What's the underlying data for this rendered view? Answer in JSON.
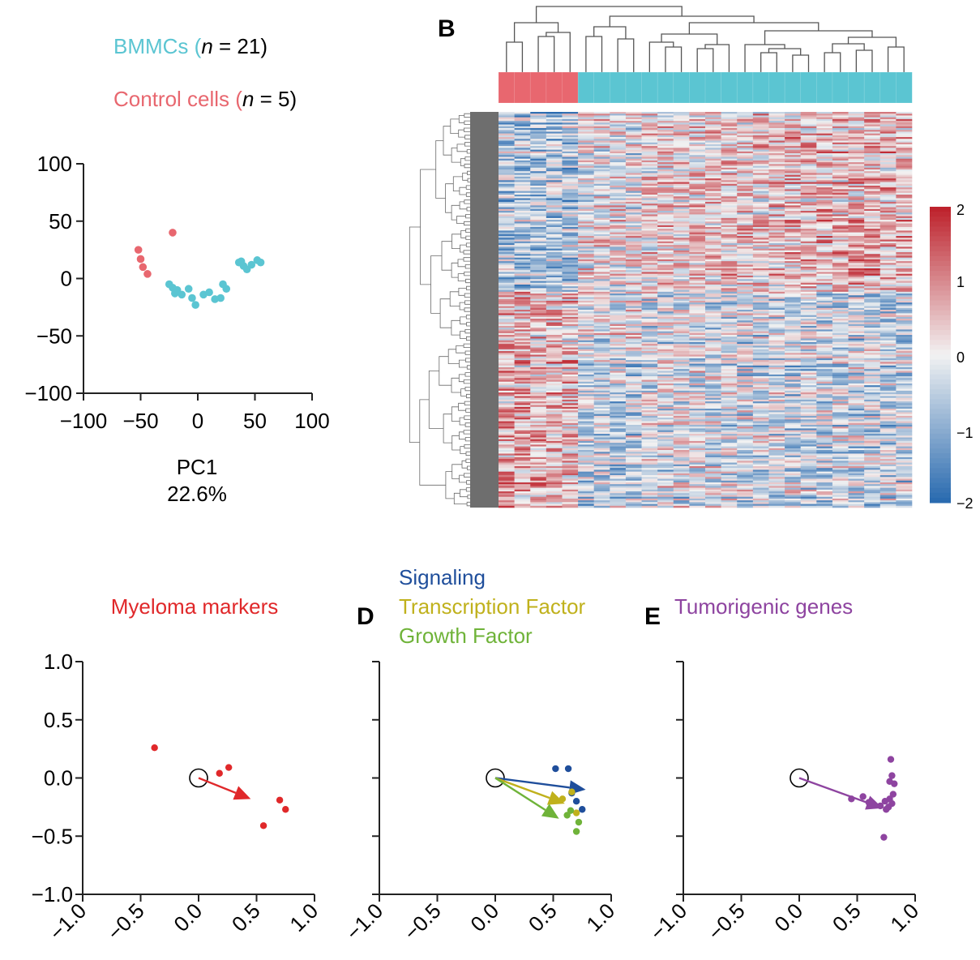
{
  "colors": {
    "bmmc": "#5bc5d2",
    "control": "#e8676f",
    "myeloma": "#e0282a",
    "signaling": "#1f4e9b",
    "transcription": "#c0b11c",
    "growth": "#6fb339",
    "tumorigenic": "#8e44a0",
    "axis": "#222222",
    "dendrogram": "#555555",
    "rowdend": "#6a6a6a"
  },
  "panel_a": {
    "legend": [
      {
        "text": "BMMCs (",
        "n_label": "n",
        "suffix": " = 21)",
        "color_key": "bmmc"
      },
      {
        "text": "Control cells (",
        "n_label": "n",
        "suffix": " = 5)",
        "color_key": "control"
      }
    ],
    "xlabel_line1": "PC1",
    "xlabel_line2": "22.6%"
  },
  "panel_b": {
    "label": "B",
    "colorbar_ticks": [
      "2",
      "1",
      "0",
      "−1",
      "−2"
    ]
  },
  "panel_c": {
    "title": "Myeloma markers"
  },
  "panel_d": {
    "label": "D",
    "titles": [
      {
        "text": "Signaling",
        "color_key": "signaling"
      },
      {
        "text": "Transcription Factor",
        "color_key": "transcription"
      },
      {
        "text": "Growth Factor",
        "color_key": "growth"
      }
    ]
  },
  "panel_e": {
    "label": "E",
    "title": "Tumorigenic genes"
  },
  "chart_data": [
    {
      "type": "scatter",
      "panel": "A",
      "xlabel": "PC1 22.6%",
      "xlim": [
        -100,
        100
      ],
      "ylim": [
        -100,
        100
      ],
      "xticks": [
        -100,
        -50,
        0,
        50,
        100
      ],
      "yticks": [
        100,
        50,
        0,
        -50,
        -100
      ],
      "series": [
        {
          "name": "BMMCs (n = 21)",
          "color_key": "bmmc",
          "points": [
            [
              -25,
              -5
            ],
            [
              -22,
              -8
            ],
            [
              -20,
              -13
            ],
            [
              -18,
              -10
            ],
            [
              -14,
              -14
            ],
            [
              -8,
              -9
            ],
            [
              -5,
              -17
            ],
            [
              -2,
              -23
            ],
            [
              5,
              -14
            ],
            [
              10,
              -12
            ],
            [
              15,
              -18
            ],
            [
              20,
              -17
            ],
            [
              22,
              -5
            ],
            [
              25,
              -9
            ],
            [
              36,
              14
            ],
            [
              40,
              11
            ],
            [
              43,
              8
            ],
            [
              47,
              12
            ],
            [
              52,
              16
            ],
            [
              55,
              14
            ],
            [
              38,
              15
            ]
          ]
        },
        {
          "name": "Control cells (n = 5)",
          "color_key": "control",
          "points": [
            [
              -22,
              40
            ],
            [
              -52,
              25
            ],
            [
              -50,
              17
            ],
            [
              -48,
              10
            ],
            [
              -44,
              4
            ]
          ]
        }
      ]
    },
    {
      "type": "heatmap",
      "panel": "B",
      "colorbar_range": [
        -2,
        2
      ],
      "colorbar_ticks": [
        2,
        1,
        0,
        -1,
        -2
      ],
      "column_groups": [
        {
          "name": "Control cells",
          "count": 5,
          "color_key": "control"
        },
        {
          "name": "BMMCs",
          "count": 21,
          "color_key": "bmmc"
        }
      ]
    },
    {
      "type": "scatter",
      "panel": "C",
      "title": "Myeloma markers",
      "xlim": [
        -1,
        1
      ],
      "ylim": [
        -1,
        1
      ],
      "xticks": [
        -1.0,
        -0.5,
        0.0,
        0.5,
        1.0
      ],
      "yticks": [
        1.0,
        0.5,
        0.0,
        -0.5,
        -1.0
      ],
      "series": [
        {
          "name": "Myeloma markers",
          "color_key": "myeloma",
          "points": [
            [
              -0.38,
              0.26
            ],
            [
              0.18,
              0.04
            ],
            [
              0.26,
              0.09
            ],
            [
              0.7,
              -0.19
            ],
            [
              0.75,
              -0.27
            ],
            [
              0.56,
              -0.41
            ]
          ],
          "arrow": [
            0.45,
            -0.18
          ]
        }
      ]
    },
    {
      "type": "scatter",
      "panel": "D",
      "xlim": [
        -1,
        1
      ],
      "ylim": [
        -1,
        1
      ],
      "xticks": [
        -1.0,
        -0.5,
        0.0,
        0.5,
        1.0
      ],
      "series": [
        {
          "name": "Signaling",
          "color_key": "signaling",
          "points": [
            [
              0.52,
              0.08
            ],
            [
              0.63,
              0.08
            ],
            [
              0.75,
              -0.27
            ],
            [
              0.7,
              -0.2
            ],
            [
              0.66,
              -0.13
            ]
          ],
          "arrow": [
            0.78,
            -0.1
          ]
        },
        {
          "name": "Transcription Factor",
          "color_key": "transcription",
          "points": [
            [
              0.58,
              -0.18
            ],
            [
              0.66,
              -0.12
            ],
            [
              0.7,
              -0.3
            ]
          ],
          "arrow": [
            0.6,
            -0.22
          ]
        },
        {
          "name": "Growth Factor",
          "color_key": "growth",
          "points": [
            [
              0.65,
              -0.28
            ],
            [
              0.72,
              -0.38
            ],
            [
              0.7,
              -0.46
            ],
            [
              0.62,
              -0.32
            ]
          ],
          "arrow": [
            0.55,
            -0.35
          ]
        }
      ]
    },
    {
      "type": "scatter",
      "panel": "E",
      "title": "Tumorigenic genes",
      "xlim": [
        -1,
        1
      ],
      "ylim": [
        -1,
        1
      ],
      "xticks": [
        -1.0,
        -0.5,
        0.0,
        0.5,
        1.0
      ],
      "series": [
        {
          "name": "Tumorigenic genes",
          "color_key": "tumorigenic",
          "points": [
            [
              0.45,
              -0.18
            ],
            [
              0.55,
              -0.16
            ],
            [
              0.6,
              -0.21
            ],
            [
              0.74,
              -0.2
            ],
            [
              0.77,
              -0.25
            ],
            [
              0.8,
              -0.22
            ],
            [
              0.78,
              -0.18
            ],
            [
              0.81,
              -0.14
            ],
            [
              0.82,
              -0.05
            ],
            [
              0.78,
              -0.03
            ],
            [
              0.8,
              0.02
            ],
            [
              0.79,
              0.16
            ],
            [
              0.75,
              -0.27
            ],
            [
              0.73,
              -0.51
            ],
            [
              0.7,
              -0.24
            ]
          ],
          "arrow": [
            0.72,
            -0.26
          ]
        }
      ]
    }
  ]
}
